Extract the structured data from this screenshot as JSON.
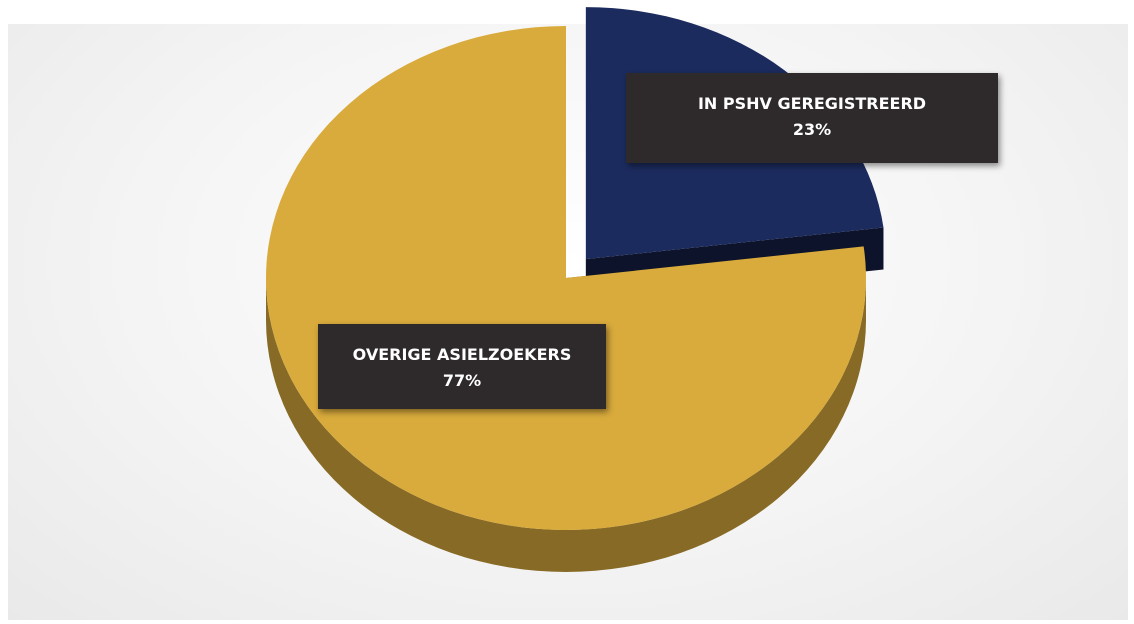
{
  "chart_data": {
    "type": "pie",
    "slices": [
      {
        "label": "IN PSHV GEREGISTREERD",
        "value": 23,
        "value_label": "23%",
        "color": "#1c2b5e",
        "exploded": true
      },
      {
        "label": "OVERIGE ASIELZOEKERS",
        "value": 77,
        "value_label": "77%",
        "color": "#d9ab3c",
        "exploded": false
      }
    ],
    "three_d": true,
    "legend": "none"
  }
}
